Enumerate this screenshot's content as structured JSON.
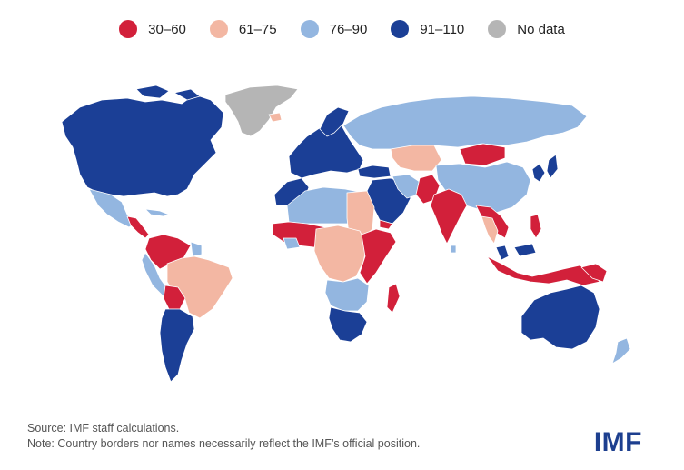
{
  "legend": {
    "items": [
      {
        "label": "30–60",
        "color": "#d2203a"
      },
      {
        "label": "61–75",
        "color": "#f3b7a3"
      },
      {
        "label": "76–90",
        "color": "#93b6e0"
      },
      {
        "label": "91–110",
        "color": "#1b3f96"
      },
      {
        "label": "No data",
        "color": "#b5b5b5"
      }
    ]
  },
  "source_text": "Source: IMF staff calculations.",
  "note_text": "Note: Country borders nor names necessarily reflect the IMF’s official position.",
  "logo_text": "IMF",
  "colors": {
    "c30_60": "#d2203a",
    "c61_75": "#f3b7a3",
    "c76_90": "#93b6e0",
    "c91_110": "#1b3f96",
    "no_data": "#b5b5b5"
  }
}
